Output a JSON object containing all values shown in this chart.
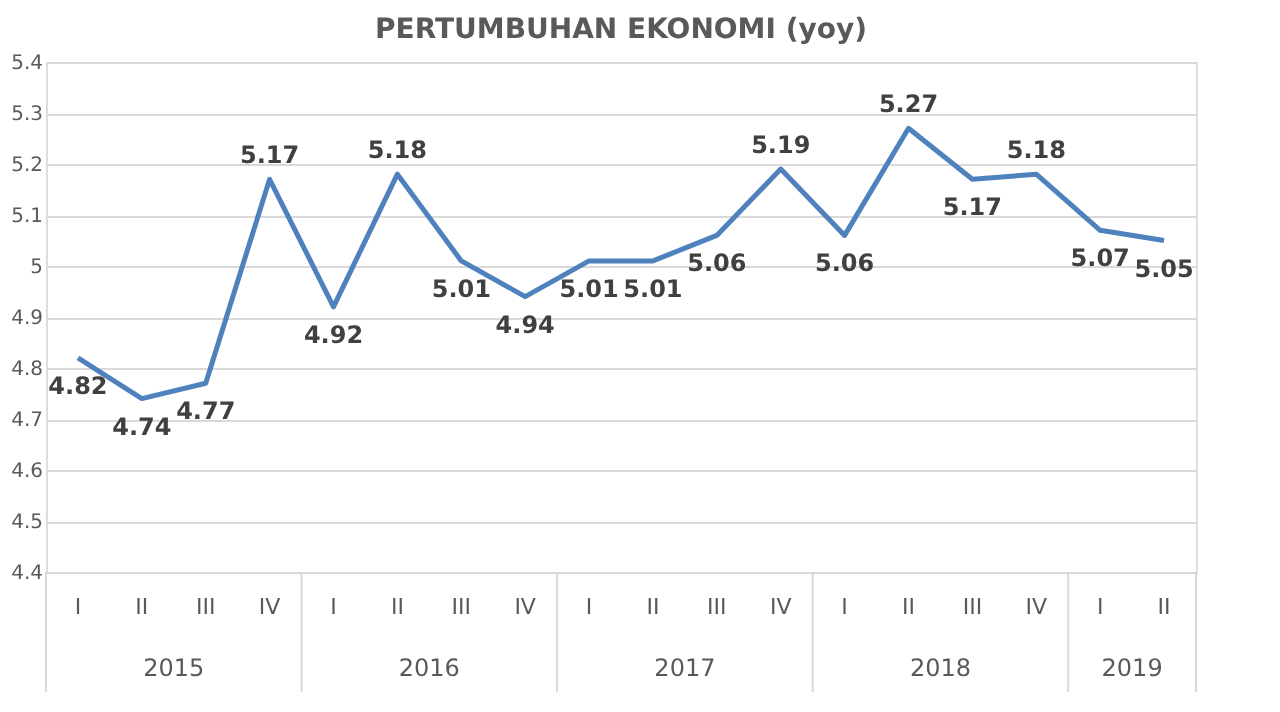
{
  "chart_data": {
    "type": "line",
    "title": "PERTUMBUHAN EKONOMI (yoy)",
    "categories": [
      "I",
      "II",
      "III",
      "IV",
      "I",
      "II",
      "III",
      "IV",
      "I",
      "II",
      "III",
      "IV",
      "I",
      "II",
      "III",
      "IV",
      "I",
      "II"
    ],
    "series": [
      {
        "color": "#4f81bd",
        "values": [
          4.82,
          4.74,
          4.77,
          5.17,
          4.92,
          5.18,
          5.01,
          4.94,
          5.01,
          5.01,
          5.06,
          5.19,
          5.06,
          5.27,
          5.17,
          5.18,
          5.07,
          5.05
        ]
      }
    ],
    "annotations": [
      "2015",
      "2016",
      "2017",
      "2018",
      "2019"
    ],
    "ylim": [
      4.4,
      5.4
    ],
    "yticks": [
      4.4,
      4.5,
      4.6,
      4.7,
      4.8,
      4.9,
      5,
      5.1,
      5.2,
      5.3,
      5.4
    ],
    "grid": "y",
    "data_labels": true,
    "marker": "none",
    "line_style": "solid"
  }
}
